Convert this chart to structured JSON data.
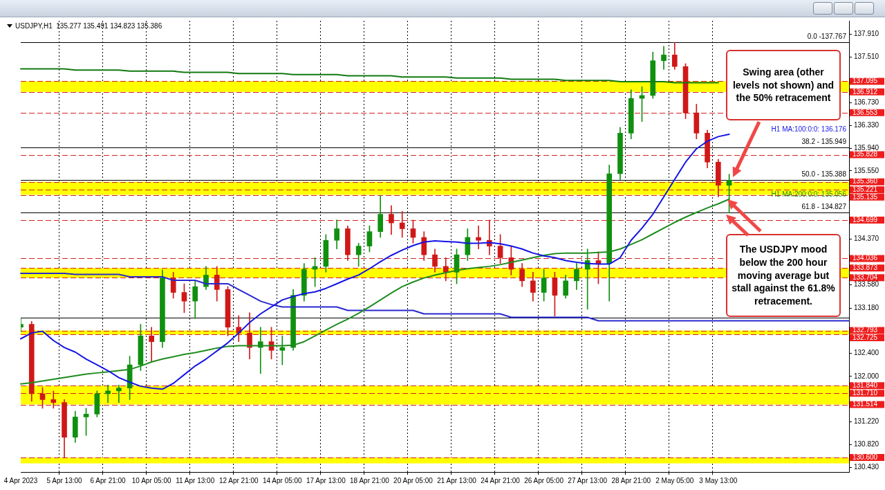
{
  "chart_data": {
    "type": "candlestick",
    "title": "USDJPY,H1  135.277 135.491 134.823 135.386",
    "categories": [
      "4 Apr 2023",
      null,
      null,
      null,
      "5 Apr 13:00",
      null,
      null,
      null,
      "6 Apr 21:00",
      null,
      null,
      null,
      "10 Apr 05:00",
      null,
      null,
      null,
      "11 Apr 13:00",
      null,
      null,
      null,
      "12 Apr 21:00",
      null,
      null,
      null,
      "14 Apr 05:00",
      null,
      null,
      null,
      "17 Apr 13:00",
      null,
      null,
      null,
      "18 Apr 21:00",
      null,
      null,
      null,
      "20 Apr 05:00",
      null,
      null,
      null,
      "21 Apr 13:00",
      null,
      null,
      null,
      "24 Apr 21:00",
      null,
      null,
      null,
      "26 Apr 05:00",
      null,
      null,
      null,
      "27 Apr 13:00",
      null,
      null,
      null,
      "28 Apr 21:00",
      null,
      null,
      null,
      "2 May 05:00",
      null,
      null,
      null,
      "3 May 13:00",
      null,
      null,
      null,
      null,
      null,
      null,
      null,
      null,
      null,
      null,
      null,
      null
    ],
    "ohlc": [
      [
        132.85,
        133.0,
        132.77,
        132.9
      ],
      [
        132.9,
        132.95,
        131.57,
        131.7
      ],
      [
        131.7,
        131.81,
        131.45,
        131.6
      ],
      [
        131.6,
        131.75,
        131.45,
        131.55
      ],
      [
        131.55,
        131.6,
        130.6,
        130.95
      ],
      [
        130.95,
        131.4,
        130.86,
        131.3
      ],
      [
        131.3,
        131.45,
        130.98,
        131.35
      ],
      [
        131.35,
        131.75,
        131.3,
        131.7
      ],
      [
        131.7,
        131.85,
        131.55,
        131.75
      ],
      [
        131.75,
        131.85,
        131.55,
        131.8
      ],
      [
        131.8,
        132.35,
        131.6,
        132.2
      ],
      [
        132.2,
        132.9,
        132.1,
        132.7
      ],
      [
        132.7,
        132.85,
        132.25,
        132.6
      ],
      [
        132.6,
        133.84,
        132.5,
        133.7
      ],
      [
        133.7,
        133.8,
        133.35,
        133.45
      ],
      [
        133.45,
        133.6,
        133.1,
        133.3
      ],
      [
        133.3,
        133.65,
        133.0,
        133.55
      ],
      [
        133.55,
        133.9,
        133.5,
        133.75
      ],
      [
        133.75,
        133.9,
        133.3,
        133.5
      ],
      [
        133.5,
        133.55,
        132.7,
        132.85
      ],
      [
        132.85,
        133.05,
        132.6,
        132.75
      ],
      [
        132.75,
        133.1,
        132.3,
        132.5
      ],
      [
        132.5,
        132.85,
        132.05,
        132.6
      ],
      [
        132.6,
        132.85,
        132.3,
        132.45
      ],
      [
        132.45,
        132.7,
        132.2,
        132.5
      ],
      [
        132.5,
        133.5,
        132.45,
        133.4
      ],
      [
        133.4,
        133.95,
        133.3,
        133.85
      ],
      [
        133.85,
        134.05,
        133.55,
        133.9
      ],
      [
        133.9,
        134.45,
        133.8,
        134.35
      ],
      [
        134.35,
        134.7,
        134.2,
        134.55
      ],
      [
        134.55,
        134.6,
        134.0,
        134.1
      ],
      [
        134.1,
        134.3,
        133.9,
        134.25
      ],
      [
        134.25,
        134.6,
        134.15,
        134.5
      ],
      [
        134.5,
        135.12,
        134.4,
        134.8
      ],
      [
        134.8,
        134.95,
        134.45,
        134.65
      ],
      [
        134.65,
        134.85,
        134.4,
        134.55
      ],
      [
        134.55,
        134.7,
        134.3,
        134.4
      ],
      [
        134.4,
        134.5,
        134.0,
        134.1
      ],
      [
        134.1,
        134.2,
        133.8,
        133.9
      ],
      [
        133.9,
        134.05,
        133.65,
        133.8
      ],
      [
        133.8,
        134.2,
        133.6,
        134.1
      ],
      [
        134.1,
        134.55,
        134.0,
        134.4
      ],
      [
        134.4,
        134.6,
        134.2,
        134.35
      ],
      [
        134.35,
        134.7,
        134.1,
        134.25
      ],
      [
        134.25,
        134.45,
        133.95,
        134.05
      ],
      [
        134.05,
        134.25,
        133.75,
        133.85
      ],
      [
        133.85,
        133.95,
        133.55,
        133.65
      ],
      [
        133.65,
        133.8,
        133.3,
        133.45
      ],
      [
        133.45,
        133.85,
        133.3,
        133.7
      ],
      [
        133.7,
        133.8,
        133.04,
        133.4
      ],
      [
        133.4,
        133.75,
        133.35,
        133.65
      ],
      [
        133.65,
        133.95,
        133.5,
        133.85
      ],
      [
        133.85,
        134.2,
        133.16,
        134.0
      ],
      [
        134.0,
        134.15,
        133.6,
        133.95
      ],
      [
        133.95,
        135.65,
        133.3,
        135.5
      ],
      [
        135.5,
        136.3,
        135.4,
        136.2
      ],
      [
        136.2,
        136.95,
        136.1,
        136.8
      ],
      [
        136.8,
        137.0,
        136.4,
        136.85
      ],
      [
        136.85,
        137.6,
        136.8,
        137.45
      ],
      [
        137.45,
        137.7,
        137.3,
        137.55
      ],
      [
        137.55,
        137.767,
        137.3,
        137.35
      ],
      [
        137.35,
        137.4,
        136.45,
        136.55
      ],
      [
        136.55,
        136.7,
        136.1,
        136.2
      ],
      [
        136.2,
        136.25,
        135.6,
        135.7
      ],
      [
        135.7,
        135.75,
        135.1,
        135.3
      ],
      [
        135.3,
        135.491,
        134.823,
        135.386
      ],
      null,
      null,
      null,
      null,
      null,
      null,
      null,
      null,
      null,
      null,
      null
    ],
    "series": [
      {
        "type": "line",
        "name": "H1 MA:100:0:0: 136.176",
        "color": "#1414e6",
        "values": [
          132.65,
          132.75,
          132.78,
          132.62,
          132.5,
          132.42,
          132.3,
          132.2,
          132.1,
          131.98,
          131.9,
          131.83,
          131.8,
          131.78,
          131.88,
          132.03,
          132.18,
          132.3,
          132.44,
          132.58,
          132.75,
          132.93,
          133.08,
          133.2,
          133.32,
          133.38,
          133.43,
          133.46,
          133.52,
          133.6,
          133.68,
          133.75,
          133.86,
          133.98,
          134.09,
          134.18,
          134.26,
          134.32,
          134.34,
          134.33,
          134.32,
          134.3,
          134.3,
          134.31,
          134.29,
          134.25,
          134.2,
          134.13,
          134.08,
          134.05,
          134.0,
          133.97,
          133.95,
          133.94,
          133.94,
          134.05,
          134.35,
          134.56,
          134.8,
          135.1,
          135.4,
          135.7,
          135.93,
          136.06,
          136.14,
          136.18,
          null,
          null,
          null,
          null,
          null,
          null,
          null,
          null,
          null,
          null,
          null
        ]
      },
      {
        "type": "line",
        "name": "H1 MA:200:0:0: 135.056",
        "color": "#1e8c1e",
        "values": [
          131.87,
          131.89,
          131.92,
          131.95,
          131.98,
          132.01,
          132.04,
          132.06,
          132.08,
          132.1,
          132.12,
          132.18,
          132.25,
          132.3,
          132.34,
          132.38,
          132.41,
          132.45,
          132.49,
          132.52,
          132.53,
          132.53,
          132.53,
          132.53,
          132.53,
          132.54,
          132.6,
          132.7,
          132.8,
          132.9,
          132.99,
          133.09,
          133.2,
          133.32,
          133.44,
          133.55,
          133.63,
          133.7,
          133.75,
          133.79,
          133.83,
          133.86,
          133.88,
          133.9,
          133.93,
          133.97,
          134.01,
          134.05,
          134.09,
          134.12,
          134.13,
          134.13,
          134.13,
          134.14,
          134.15,
          134.2,
          134.28,
          134.36,
          134.46,
          134.56,
          134.66,
          134.75,
          134.83,
          134.91,
          134.98,
          135.06,
          null,
          null,
          null,
          null,
          null,
          null,
          null,
          null,
          null,
          null,
          null
        ]
      },
      {
        "type": "line",
        "color": "#117a11",
        "values": [
          137.31,
          137.31,
          137.31,
          137.31,
          137.31,
          137.29,
          137.29,
          137.29,
          137.29,
          137.29,
          137.27,
          137.27,
          137.27,
          137.27,
          137.27,
          137.25,
          137.25,
          137.25,
          137.25,
          137.25,
          137.23,
          137.23,
          137.23,
          137.23,
          137.23,
          137.21,
          137.21,
          137.21,
          137.21,
          137.21,
          137.19,
          137.19,
          137.19,
          137.19,
          137.19,
          137.17,
          137.17,
          137.17,
          137.17,
          137.17,
          137.15,
          137.15,
          137.15,
          137.15,
          137.15,
          137.13,
          137.13,
          137.13,
          137.13,
          137.13,
          137.11,
          137.11,
          137.11,
          137.11,
          137.11,
          137.09,
          137.09,
          137.09,
          137.09,
          137.09,
          137.07,
          137.07,
          137.07,
          137.07,
          137.07,
          null,
          null,
          null,
          null,
          null,
          null,
          null,
          null,
          null,
          null,
          null,
          null
        ]
      },
      {
        "type": "line",
        "color": "#2828d0",
        "values": [
          133.78,
          133.78,
          133.78,
          133.78,
          133.78,
          133.76,
          133.76,
          133.76,
          133.76,
          133.76,
          133.72,
          133.72,
          133.72,
          133.72,
          133.66,
          133.66,
          133.66,
          133.6,
          133.6,
          133.6,
          133.5,
          133.4,
          133.3,
          133.24,
          133.2,
          133.2,
          133.2,
          133.2,
          133.2,
          133.2,
          133.14,
          133.14,
          133.14,
          133.14,
          133.14,
          133.14,
          133.14,
          133.08,
          133.08,
          133.08,
          133.08,
          133.08,
          133.08,
          133.08,
          133.08,
          133.02,
          133.02,
          133.02,
          133.02,
          133.02,
          133.02,
          133.02,
          133.02,
          132.96,
          132.96,
          132.96,
          132.96,
          132.96,
          132.96,
          132.96,
          132.96,
          132.96,
          132.96,
          132.96,
          132.96,
          132.96,
          132.96,
          132.96,
          132.96,
          132.96,
          132.96,
          132.96,
          132.96,
          132.96,
          132.96,
          132.96,
          132.96
        ]
      }
    ],
    "ylim": [
      130.35,
      138.14
    ],
    "yticks": [
      {
        "value": 137.91,
        "label": "137.910"
      },
      {
        "value": 137.51,
        "label": "137.510"
      },
      {
        "value": 136.73,
        "label": "136.730"
      },
      {
        "value": 136.33,
        "label": "136.330"
      },
      {
        "value": 135.94,
        "label": "135.940"
      },
      {
        "value": 135.55,
        "label": "135.550"
      },
      {
        "value": 134.37,
        "label": "134.370"
      },
      {
        "value": 133.58,
        "label": "133.580"
      },
      {
        "value": 133.18,
        "label": "133.180"
      },
      {
        "value": 132.4,
        "label": "132.400"
      },
      {
        "value": 132.0,
        "label": "132.000"
      },
      {
        "value": 131.22,
        "label": "131.220"
      },
      {
        "value": 130.82,
        "label": "130.820"
      },
      {
        "value": 130.43,
        "label": "130.430"
      }
    ],
    "grid": "x",
    "marker": "none",
    "bands": [
      {
        "axis": "y",
        "from": 136.912,
        "to": 137.095,
        "color": "#ffff00"
      },
      {
        "axis": "y",
        "from": 135.135,
        "to": 135.36,
        "color": "#ffff00"
      },
      {
        "axis": "y",
        "from": 133.704,
        "to": 133.873,
        "color": "#ffff00"
      },
      {
        "axis": "y",
        "from": 132.725,
        "to": 132.793,
        "color": "#ffff00"
      },
      {
        "axis": "y",
        "from": 131.514,
        "to": 131.84,
        "color": "#ffff00"
      },
      {
        "axis": "y",
        "from": 130.5,
        "to": 130.6,
        "color": "#ffff00"
      }
    ],
    "ref_lines": [
      {
        "axis": "y",
        "value": 137.095,
        "label": "137.095",
        "color": "#d42020",
        "line_style": "dashed"
      },
      {
        "axis": "y",
        "value": 136.912,
        "label": "136.912",
        "color": "#d42020",
        "line_style": "dashed"
      },
      {
        "axis": "y",
        "value": 136.553,
        "label": "136.553",
        "color": "#d42020",
        "line_style": "dashed"
      },
      {
        "axis": "y",
        "value": 135.828,
        "label": "135.828",
        "color": "#d42020",
        "line_style": "dashed"
      },
      {
        "axis": "y",
        "value": 135.36,
        "label": "135.360",
        "color": "#d42020",
        "line_style": "dashed"
      },
      {
        "axis": "y",
        "value": 135.221,
        "label": "135.221",
        "color": "#d42020",
        "line_style": "dashed"
      },
      {
        "axis": "y",
        "value": 135.135,
        "label": "135.135",
        "color": "#d42020",
        "line_style": "dashed"
      },
      {
        "axis": "y",
        "value": 134.699,
        "label": "134.699",
        "color": "#d42020",
        "line_style": "dashed"
      },
      {
        "axis": "y",
        "value": 134.036,
        "label": "134.036",
        "color": "#d42020",
        "line_style": "dashed"
      },
      {
        "axis": "y",
        "value": 133.873,
        "label": "133.873",
        "color": "#d42020",
        "line_style": "dashed"
      },
      {
        "axis": "y",
        "value": 133.704,
        "label": "133.704",
        "color": "#d42020",
        "line_style": "dashed"
      },
      {
        "axis": "y",
        "value": 132.793,
        "label": "132.793",
        "color": "#d42020",
        "line_style": "dashed"
      },
      {
        "axis": "y",
        "value": 132.725,
        "label": "132.725",
        "color": "#d42020",
        "line_style": "dashed"
      },
      {
        "axis": "y",
        "value": 131.84,
        "label": "131.840",
        "color": "#d42020",
        "line_style": "dashed"
      },
      {
        "axis": "y",
        "value": 131.71,
        "label": "131.710",
        "color": "#d42020",
        "line_style": "dashed"
      },
      {
        "axis": "y",
        "value": 131.514,
        "label": "131.514",
        "color": "#d42020",
        "line_style": "dashed"
      },
      {
        "axis": "y",
        "value": 130.6,
        "label": "130.600",
        "color": "#d42020",
        "line_style": "dashed"
      },
      {
        "axis": "y",
        "value": 137.767,
        "color": "#000000",
        "line_style": "solid"
      },
      {
        "axis": "y",
        "value": 135.949,
        "color": "#000000",
        "line_style": "solid"
      },
      {
        "axis": "y",
        "value": 135.388,
        "color": "#000000",
        "line_style": "solid"
      },
      {
        "axis": "y",
        "value": 134.827,
        "color": "#000000",
        "line_style": "solid"
      },
      {
        "axis": "y",
        "value": 133.01,
        "color": "#000000",
        "line_style": "solid"
      }
    ],
    "annotations": [
      {
        "text": "0.0 -137.767",
        "y": 137.767
      },
      {
        "text": "38.2 - 135.949",
        "y": 135.949
      },
      {
        "text": "50.0 - 135.388",
        "y": 135.388
      },
      {
        "text": "61.8 - 134.827",
        "y": 134.827
      },
      "Swing area (other levels not shown) and the 50% retracement",
      "The USDJPY mood below the 200 hour moving average but stall against the 61.8% retracement."
    ]
  }
}
